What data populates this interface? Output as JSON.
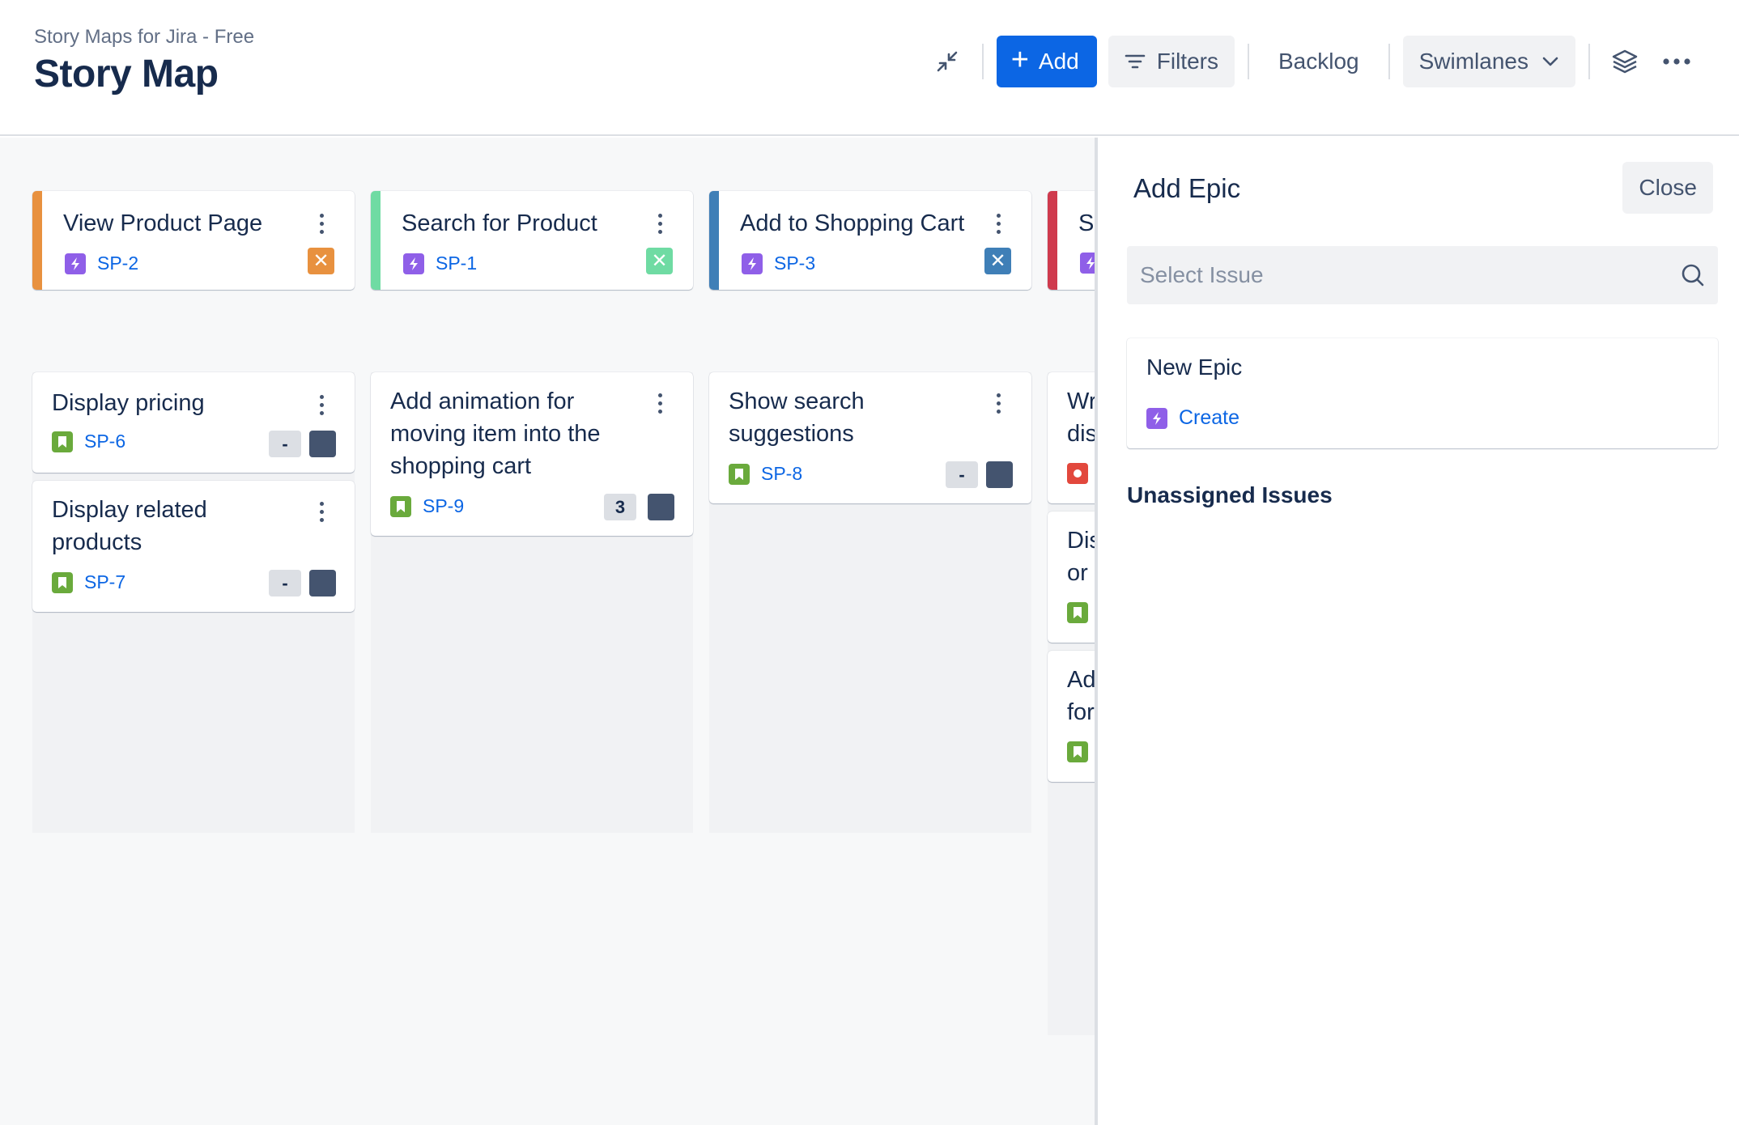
{
  "header": {
    "app_name": "Story Maps for Jira - Free",
    "title": "Story Map",
    "toolbar": {
      "collapse_icon": "collapse-arrows-icon",
      "add_label": "Add",
      "filters_label": "Filters",
      "backlog_label": "Backlog",
      "swimlanes_label": "Swimlanes",
      "layers_icon": "layers-icon",
      "more_icon": "more-horizontal-icon"
    }
  },
  "colors": {
    "primary": "#0c66e4",
    "epic_orange": "#e8913f",
    "epic_green": "#6fdba3",
    "epic_blue": "#3f7fb7",
    "epic_red": "#cf3a4d",
    "epic_type": "#8f5fe8",
    "story_type": "#6aaa3c",
    "bug_type": "#e2483d"
  },
  "epics": [
    {
      "title": "View Product Page",
      "key": "SP-2",
      "color": "#e8913f"
    },
    {
      "title": "Search for Product",
      "key": "SP-1",
      "color": "#6fdba3"
    },
    {
      "title": "Add to Shopping Cart",
      "key": "SP-3",
      "color": "#3f7fb7"
    },
    {
      "title": "S",
      "key": "",
      "color": "#cf3a4d"
    }
  ],
  "stories": {
    "col1": [
      {
        "title": "Display pricing",
        "key": "SP-6",
        "points": "-"
      },
      {
        "title": "Display related products",
        "key": "SP-7",
        "points": "-"
      }
    ],
    "col2": [
      {
        "title": "Add animation for moving item into the shopping cart",
        "key": "SP-9",
        "points": "3"
      }
    ],
    "col3": [
      {
        "title": "Show search suggestions",
        "key": "SP-8",
        "points": "-"
      }
    ],
    "col4": [
      {
        "line1": "Wr",
        "line2": "dis",
        "type": "bug"
      },
      {
        "line1": "Dis",
        "line2": "or",
        "type": "story"
      },
      {
        "line1": "Ad",
        "line2": "for",
        "type": "story"
      }
    ]
  },
  "panel": {
    "title": "Add Epic",
    "close_label": "Close",
    "search_placeholder": "Select Issue",
    "new_epic_title": "New Epic",
    "create_label": "Create",
    "unassigned_title": "Unassigned Issues"
  }
}
